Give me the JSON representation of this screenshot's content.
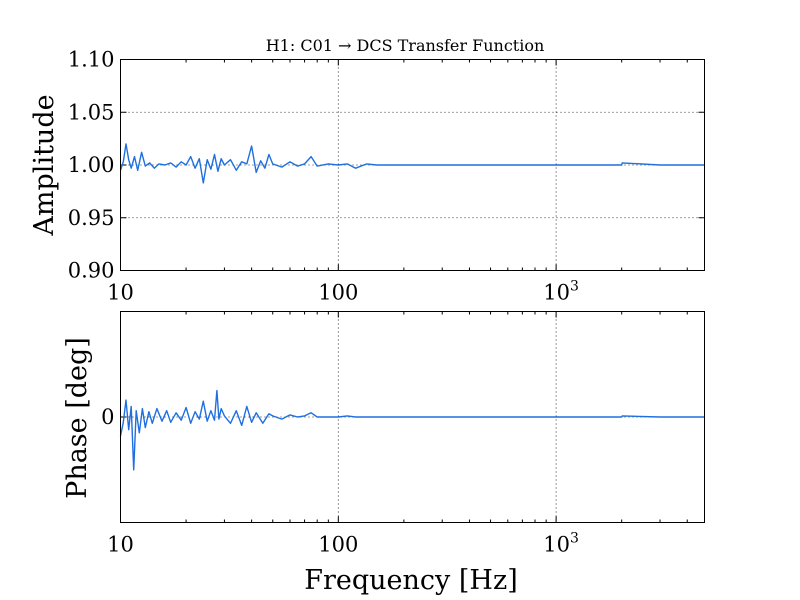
{
  "chart_data": [
    {
      "type": "line",
      "title": "H1: C01 → DCS Transfer Function",
      "xlabel": "",
      "ylabel": "Amplitude",
      "xscale": "log",
      "xlim": [
        10,
        4800
      ],
      "ylim": [
        0.9,
        1.1
      ],
      "xticks": [
        10,
        100,
        1000
      ],
      "xtick_labels": [
        {
          "text": "10",
          "sup": ""
        },
        {
          "text": "100",
          "sup": ""
        },
        {
          "text": "10",
          "sup": "3"
        }
      ],
      "yticks": [
        0.9,
        0.95,
        1.0,
        1.05,
        1.1
      ],
      "ytick_labels": [
        "0.90",
        "0.95",
        "1.00",
        "1.05",
        "1.10"
      ],
      "grid": true,
      "series": [
        {
          "color": "#1f6fe0",
          "x": [
            10.0,
            10.3,
            10.6,
            10.9,
            11.2,
            11.6,
            12.0,
            12.5,
            13.0,
            13.6,
            14.3,
            15.0,
            16.0,
            17.0,
            18.0,
            19.0,
            20.0,
            21.0,
            22.0,
            23.0,
            24.0,
            25.0,
            26.0,
            27.0,
            28.0,
            29.0,
            30.0,
            32.0,
            34.0,
            36.0,
            38.0,
            40.0,
            42.0,
            44.0,
            46.0,
            48.0,
            50.0,
            55.0,
            60.0,
            65.0,
            70.0,
            75.0,
            80.0,
            90.0,
            100.0,
            110.0,
            120.0,
            135.0,
            150.0,
            200.0,
            300.0,
            500.0,
            1000.0,
            2000.0,
            2010.0,
            3000.0,
            4800.0
          ],
          "y": [
            0.995,
            1.003,
            1.02,
            1.005,
            0.997,
            1.008,
            0.995,
            1.012,
            0.999,
            1.002,
            0.997,
            1.001,
            1.0,
            1.002,
            0.998,
            1.003,
            1.0,
            1.008,
            0.997,
            1.006,
            0.983,
            1.005,
            0.996,
            1.01,
            0.994,
            1.006,
            1.0,
            1.005,
            0.995,
            1.003,
            1.001,
            1.018,
            0.993,
            1.004,
            0.997,
            1.01,
            1.001,
            0.998,
            1.003,
            0.999,
            1.001,
            1.008,
            0.999,
            1.001,
            1.0,
            1.001,
            0.997,
            1.001,
            1.0,
            1.0,
            1.0,
            1.0,
            1.0,
            1.0,
            1.002,
            1.0,
            1.0
          ]
        }
      ]
    },
    {
      "type": "line",
      "title": "",
      "xlabel": "Frequency [Hz]",
      "ylabel": "Phase [deg]",
      "xscale": "log",
      "xlim": [
        10,
        4800
      ],
      "ylim": [
        -1,
        1
      ],
      "xticks": [
        10,
        100,
        1000
      ],
      "xtick_labels": [
        {
          "text": "10",
          "sup": ""
        },
        {
          "text": "100",
          "sup": ""
        },
        {
          "text": "10",
          "sup": "3"
        }
      ],
      "yticks": [
        0
      ],
      "ytick_labels": [
        "0"
      ],
      "grid": true,
      "series": [
        {
          "color": "#1f6fe0",
          "x": [
            10.0,
            10.3,
            10.6,
            10.9,
            11.2,
            11.5,
            11.8,
            12.2,
            12.6,
            13.0,
            13.5,
            14.0,
            14.7,
            15.5,
            16.3,
            17.0,
            18.0,
            19.0,
            20.0,
            21.0,
            22.0,
            23.0,
            24.0,
            25.0,
            26.0,
            27.0,
            27.7,
            28.3,
            29.0,
            30.0,
            32.0,
            34.0,
            36.0,
            38.0,
            40.0,
            42.0,
            45.0,
            48.0,
            50.0,
            55.0,
            60.0,
            65.0,
            70.0,
            75.0,
            80.0,
            90.0,
            100.0,
            110.0,
            120.0,
            150.0,
            200.0,
            300.0,
            500.0,
            1000.0,
            2000.0,
            2010.0,
            3000.0,
            4800.0
          ],
          "y": [
            -0.18,
            -0.05,
            0.16,
            -0.12,
            0.1,
            -0.5,
            0.06,
            -0.15,
            0.08,
            -0.1,
            0.05,
            -0.06,
            0.08,
            -0.04,
            0.06,
            -0.05,
            0.04,
            -0.03,
            0.09,
            -0.06,
            0.05,
            -0.02,
            0.15,
            -0.04,
            0.06,
            -0.03,
            0.25,
            -0.02,
            0.08,
            0.01,
            -0.06,
            0.06,
            -0.08,
            0.1,
            -0.05,
            0.04,
            -0.06,
            0.03,
            0.01,
            -0.02,
            0.02,
            0.0,
            0.01,
            0.04,
            0.0,
            0.0,
            0.0,
            0.01,
            0.0,
            0.0,
            0.0,
            0.0,
            0.0,
            0.0,
            0.0,
            0.01,
            0.0,
            0.0
          ]
        }
      ]
    }
  ]
}
